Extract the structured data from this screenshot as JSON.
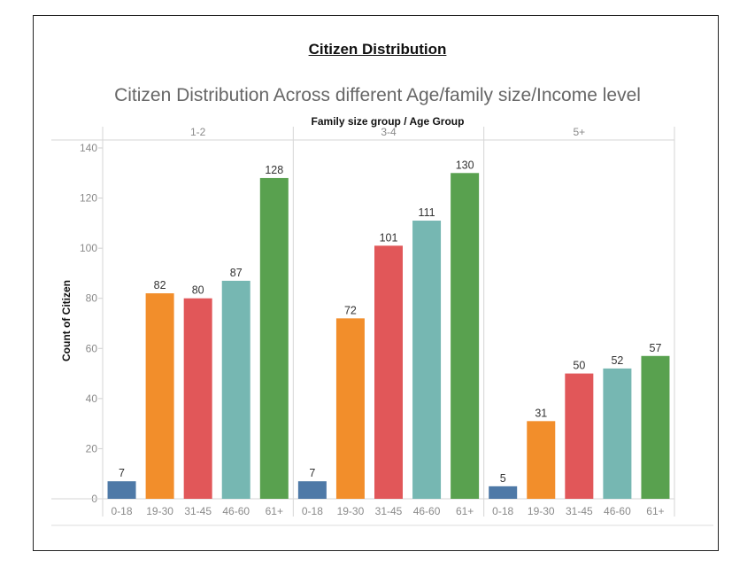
{
  "heading": "Citizen Distribution",
  "chart_data": {
    "type": "bar",
    "title": "Citizen Distribution Across different Age/family size/Income level",
    "column_header": "Family size group  /  Age Group",
    "ylabel": "Count of Citizen",
    "ylim": [
      0,
      140
    ],
    "yticks": [
      0,
      20,
      40,
      60,
      80,
      100,
      120,
      140
    ],
    "grid": false,
    "categories": [
      "0-18",
      "19-30",
      "31-45",
      "46-60",
      "61+"
    ],
    "category_colors": [
      "#4e79a7",
      "#f28e2b",
      "#e15759",
      "#76b7b2",
      "#59a14f"
    ],
    "groups": [
      {
        "name": "1-2",
        "values": [
          7,
          82,
          80,
          87,
          128
        ]
      },
      {
        "name": "3-4",
        "values": [
          7,
          72,
          101,
          111,
          130
        ]
      },
      {
        "name": "5+",
        "values": [
          5,
          31,
          50,
          52,
          57
        ]
      }
    ]
  }
}
